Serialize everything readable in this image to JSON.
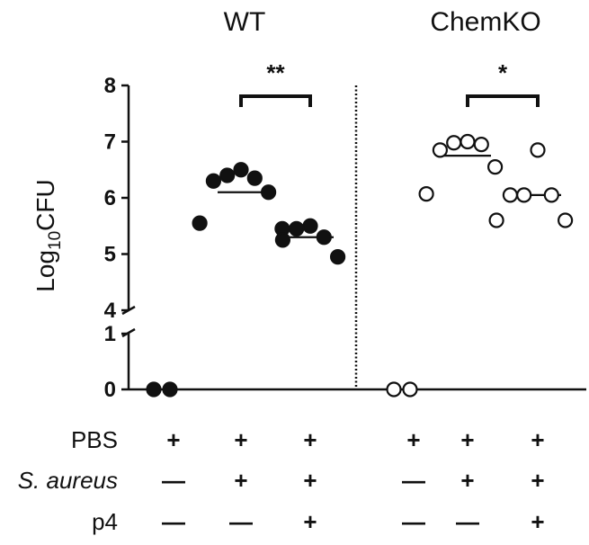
{
  "chart_data": {
    "type": "scatter",
    "ylabel_main": "Log",
    "ylabel_sub": "10",
    "ylabel_tail": "CFU",
    "y_ticks_upper": [
      "4",
      "5",
      "6",
      "7",
      "8"
    ],
    "y_ticks_lower": [
      "0",
      "1"
    ],
    "y_axis_break": [
      1,
      4
    ],
    "ylim": [
      0,
      8
    ],
    "groups": [
      {
        "title": "WT",
        "marker": "filled",
        "conditions": [
          {
            "values": [
              0,
              0
            ],
            "median": null
          },
          {
            "values": [
              6.5,
              6.4,
              6.35,
              6.3,
              6.1,
              5.55,
              5.45
            ],
            "median": 6.1
          },
          {
            "values": [
              5.5,
              5.45,
              5.3,
              5.25,
              4.95
            ],
            "median": 5.3
          }
        ],
        "significance": {
          "between": [
            1,
            2
          ],
          "label": "**"
        }
      },
      {
        "title": "ChemKO",
        "marker": "open",
        "conditions": [
          {
            "values": [
              0,
              0
            ],
            "median": null
          },
          {
            "values": [
              7.0,
              6.98,
              6.95,
              6.85,
              6.55,
              6.07
            ],
            "median": 6.75
          },
          {
            "values": [
              6.85,
              6.05,
              6.05,
              6.05,
              5.6,
              5.6
            ],
            "median": 6.05
          }
        ],
        "significance": {
          "between": [
            1,
            2
          ],
          "label": "*"
        }
      }
    ],
    "treatment_rows": [
      {
        "label": "PBS",
        "italic": false,
        "symbols": [
          "+",
          "+",
          "+",
          "+",
          "+",
          "+"
        ]
      },
      {
        "label": "S. aureus",
        "italic": true,
        "symbols": [
          "—",
          "+",
          "+",
          "—",
          "+",
          "+"
        ]
      },
      {
        "label": "p4",
        "italic": false,
        "symbols": [
          "—",
          "—",
          "+",
          "—",
          "—",
          "+"
        ]
      }
    ]
  }
}
